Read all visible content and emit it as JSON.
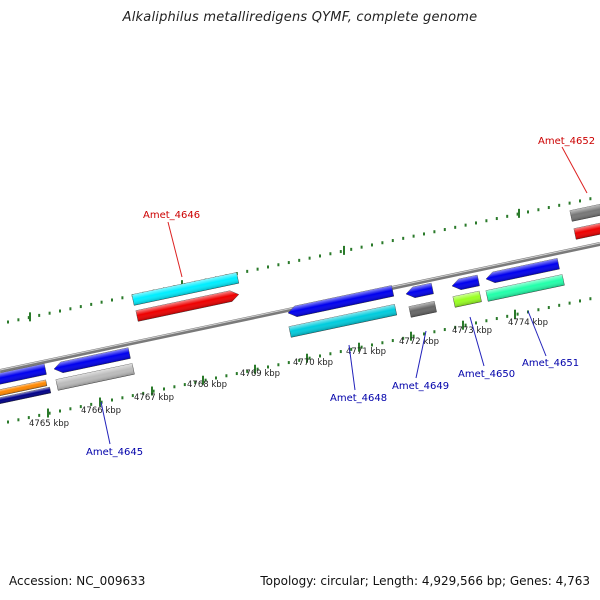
{
  "title": "Alkaliphilus metalliredigens QYMF, complete genome",
  "footer": {
    "accession": "Accession: NC_009633",
    "summary": "Topology: circular; Length: 4,929,566 bp; Genes: 4,763"
  },
  "colors": {
    "backbone": "#7a7a7a",
    "tick": "#2a7a2a",
    "label_red": "#cc0000",
    "label_blue": "#0000aa",
    "leader_red": "#dd2222",
    "leader_blue": "#2222bb"
  },
  "kbp_labels": [
    "4765 kbp",
    "4766 kbp",
    "4767 kbp",
    "4768 kbp",
    "4769 kbp",
    "4770 kbp",
    "4771 kbp",
    "4772 kbp",
    "4773 kbp",
    "4774 kbp"
  ],
  "gene_labels": [
    {
      "text": "Amet_4645",
      "color": "label_blue"
    },
    {
      "text": "Amet_4646",
      "color": "label_red"
    },
    {
      "text": "Amet_4648",
      "color": "label_blue"
    },
    {
      "text": "Amet_4649",
      "color": "label_blue"
    },
    {
      "text": "Amet_4650",
      "color": "label_blue"
    },
    {
      "text": "Amet_4651",
      "color": "label_blue"
    },
    {
      "text": "Amet_4652",
      "color": "label_red"
    }
  ],
  "genes": [
    {
      "name": "Amet_4646",
      "strand": "+",
      "color": "#ee0000",
      "arrow": true
    },
    {
      "name": "Amet_4646-feature",
      "strand": "+",
      "color": "#00eeff",
      "arrow": false
    },
    {
      "name": "Amet_4652",
      "strand": "+",
      "color": "#ee0000",
      "arrow": false
    },
    {
      "name": "Amet_4652-feature",
      "strand": "+",
      "color": "#777777",
      "arrow": false
    },
    {
      "name": "Amet_4645",
      "strand": "-",
      "color": "#0000ee",
      "arrow": true
    },
    {
      "name": "Amet_4645-feature",
      "strand": "-",
      "color": "#bbbbbb",
      "arrow": false
    },
    {
      "name": "Amet_4644",
      "strand": "-",
      "color": "#0000ee",
      "arrow": false
    },
    {
      "name": "Amet_4644-feature-a",
      "strand": "-",
      "color": "#ff8800",
      "arrow": false
    },
    {
      "name": "Amet_4644-feature-b",
      "strand": "-",
      "color": "#000088",
      "arrow": false
    },
    {
      "name": "Amet_4648",
      "strand": "-",
      "color": "#0000ee",
      "arrow": true
    },
    {
      "name": "Amet_4648-feature",
      "strand": "-",
      "color": "#00ccdd",
      "arrow": false
    },
    {
      "name": "Amet_4649",
      "strand": "-",
      "color": "#0000ee",
      "arrow": true
    },
    {
      "name": "Amet_4649-feature",
      "strand": "-",
      "color": "#666666",
      "arrow": false
    },
    {
      "name": "Amet_4650",
      "strand": "-",
      "color": "#0000ee",
      "arrow": true
    },
    {
      "name": "Amet_4650-feature",
      "strand": "-",
      "color": "#99ff22",
      "arrow": false
    },
    {
      "name": "Amet_4651",
      "strand": "-",
      "color": "#0000ee",
      "arrow": true
    },
    {
      "name": "Amet_4651-feature",
      "strand": "-",
      "color": "#22ffaa",
      "arrow": false
    }
  ]
}
